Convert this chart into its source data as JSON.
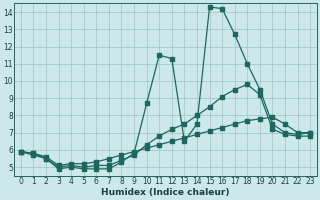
{
  "xlabel": "Humidex (Indice chaleur)",
  "bg_color": "#cce8e8",
  "grid_color": "#aac8c8",
  "line_color": "#1a6860",
  "xlim": [
    -0.5,
    23.5
  ],
  "ylim": [
    4.5,
    14.5
  ],
  "xticks": [
    0,
    1,
    2,
    3,
    4,
    5,
    6,
    7,
    8,
    9,
    10,
    11,
    12,
    13,
    14,
    15,
    16,
    17,
    18,
    19,
    20,
    21,
    22,
    23
  ],
  "yticks": [
    5,
    6,
    7,
    8,
    9,
    10,
    11,
    12,
    13,
    14
  ],
  "line1_x": [
    0,
    1,
    2,
    3,
    4,
    5,
    6,
    7,
    8,
    9,
    10,
    11,
    12,
    13,
    14,
    15,
    16,
    17,
    18,
    19,
    20,
    21,
    22,
    23
  ],
  "line1_y": [
    5.9,
    5.8,
    5.5,
    4.9,
    5.0,
    4.9,
    4.9,
    4.9,
    5.3,
    5.8,
    8.7,
    11.5,
    11.3,
    6.5,
    7.5,
    14.3,
    14.2,
    12.7,
    11.0,
    9.5,
    7.5,
    7.0,
    6.9,
    7.0
  ],
  "line2_x": [
    0,
    1,
    2,
    3,
    4,
    5,
    6,
    7,
    8,
    9,
    10,
    11,
    12,
    13,
    14,
    15,
    16,
    17,
    18,
    19,
    20,
    21,
    22,
    23
  ],
  "line2_y": [
    5.9,
    5.7,
    5.5,
    5.0,
    5.1,
    5.0,
    5.1,
    5.1,
    5.4,
    5.7,
    6.3,
    6.8,
    7.2,
    7.5,
    8.0,
    8.5,
    9.1,
    9.5,
    9.8,
    9.2,
    7.2,
    6.9,
    6.8,
    6.8
  ],
  "line3_x": [
    0,
    1,
    2,
    3,
    4,
    5,
    6,
    7,
    8,
    9,
    10,
    11,
    12,
    13,
    14,
    15,
    16,
    17,
    18,
    19,
    20,
    21,
    22,
    23
  ],
  "line3_y": [
    5.9,
    5.8,
    5.6,
    5.1,
    5.2,
    5.2,
    5.3,
    5.5,
    5.7,
    5.9,
    6.1,
    6.3,
    6.5,
    6.7,
    6.9,
    7.1,
    7.3,
    7.5,
    7.7,
    7.8,
    7.9,
    7.5,
    7.0,
    7.0
  ]
}
